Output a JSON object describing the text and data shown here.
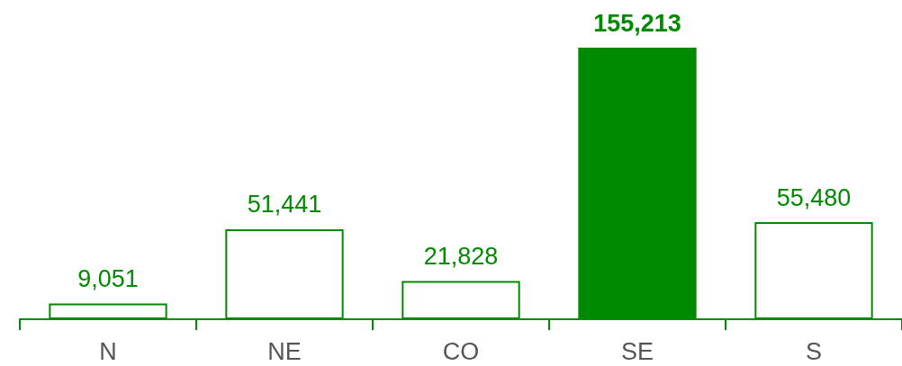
{
  "chart_data": {
    "type": "bar",
    "categories": [
      "N",
      "NE",
      "CO",
      "SE",
      "S"
    ],
    "values": [
      9051,
      51441,
      21828,
      155213,
      55480
    ],
    "color": "#008a00",
    "colors": [
      "#ffffff",
      "#ffffff",
      "#ffffff",
      "#008a00",
      "#ffffff"
    ],
    "value_labels": [
      "9,051",
      "51,441",
      "21,828",
      "155,213",
      "55,480"
    ],
    "grid": false
  }
}
